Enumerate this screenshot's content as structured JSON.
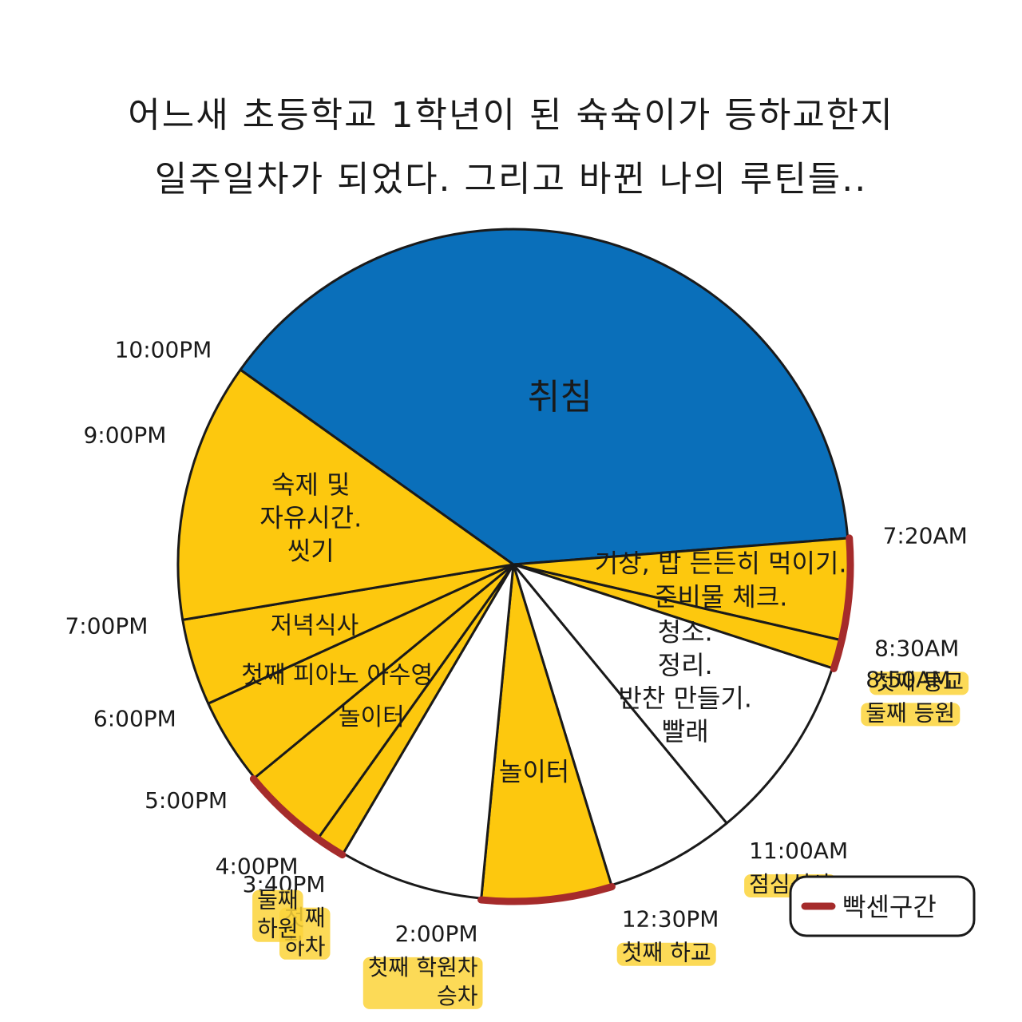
{
  "title": {
    "line1": "어느새 초등학교 1학년이 된 슉슉이가 등하교한지",
    "line2": "일주일차가 되었다. 그리고 바뀐 나의 루틴들.."
  },
  "colors": {
    "blue": "#0a6fba",
    "yellow": "#fdc80e",
    "white": "#ffffff",
    "highlight": "#fcd33a",
    "busy_arc": "#a52b2b",
    "line": "#1a1a1a"
  },
  "legend": {
    "label": "빡센구간",
    "color": "#a52b2b"
  },
  "chart_data": {
    "type": "pie",
    "title": "",
    "unit": "hours",
    "slices": [
      {
        "start": "10:00 PM",
        "end": "7:20 AM",
        "label": "취침",
        "fill": "blue"
      },
      {
        "start": "7:20 AM",
        "end": "8:30 AM",
        "label": "기상, 밥 든든히 먹이기.\n준비물 체크.",
        "fill": "yellow"
      },
      {
        "start": "8:30 AM",
        "end": "8:50 AM",
        "label": "",
        "fill": "yellow"
      },
      {
        "start": "8:50 AM",
        "end": "11:00 AM",
        "label": "청소.\n정리.\n반찬 만들기.\n빨래",
        "fill": "white"
      },
      {
        "start": "11:00 AM",
        "end": "12:30 PM",
        "label": "",
        "fill": "white"
      },
      {
        "start": "12:30 PM",
        "end": "2:00 PM",
        "label": "놀이터",
        "fill": "yellow"
      },
      {
        "start": "2:00 PM",
        "end": "3:40 PM",
        "label": "",
        "fill": "white"
      },
      {
        "start": "3:40 PM",
        "end": "4:00 PM",
        "label": "",
        "fill": "yellow"
      },
      {
        "start": "4:00 PM",
        "end": "5:00 PM",
        "label": "놀이터",
        "fill": "yellow"
      },
      {
        "start": "5:00 PM",
        "end": "6:00 PM",
        "label": "첫째 피아노 아수영",
        "fill": "yellow"
      },
      {
        "start": "6:00 PM",
        "end": "7:00 PM",
        "label": "저녁식사",
        "fill": "yellow"
      },
      {
        "start": "7:00 PM",
        "end": "10:00 PM",
        "label": "숙제 및\n자유시간.\n씻기",
        "fill": "yellow"
      }
    ],
    "boundary_labels": [
      {
        "time": "7:20AM",
        "display": "7:20AM",
        "note": ""
      },
      {
        "time": "8:30AM",
        "display": "8:30AM",
        "note": "첫째 등교"
      },
      {
        "time": "8:50AM",
        "display": "8:50AM",
        "note": "둘째 등원"
      },
      {
        "time": "11:00AM",
        "display": "11:00AM",
        "note": "점심식사"
      },
      {
        "time": "12:30PM",
        "display": "12:30PM",
        "note": "첫째 하교"
      },
      {
        "time": "2:00PM",
        "display": "2:00PM",
        "note": "첫째 학원차\n승차"
      },
      {
        "time": "3:40PM",
        "display": "3:40PM",
        "note": "첫째\n하차"
      },
      {
        "time": "4:00PM",
        "display": "4:00PM",
        "note": "둘째\n하원"
      },
      {
        "time": "5:00PM",
        "display": "5:00PM",
        "note": ""
      },
      {
        "time": "6:00PM",
        "display": "6:00PM",
        "note": ""
      },
      {
        "time": "7:00PM",
        "display": "7:00PM",
        "note": ""
      },
      {
        "time": "9:00PM",
        "display": "9:00PM",
        "note": ""
      },
      {
        "time": "10:00PM",
        "display": "10:00PM",
        "note": ""
      }
    ],
    "busy_periods": [
      {
        "start": "7:20 AM",
        "end": "8:50 AM"
      },
      {
        "start": "12:30 PM",
        "end": "2:00 PM"
      },
      {
        "start": "3:40 PM",
        "end": "5:00 PM"
      }
    ],
    "legend_entry": "빡센구간"
  }
}
